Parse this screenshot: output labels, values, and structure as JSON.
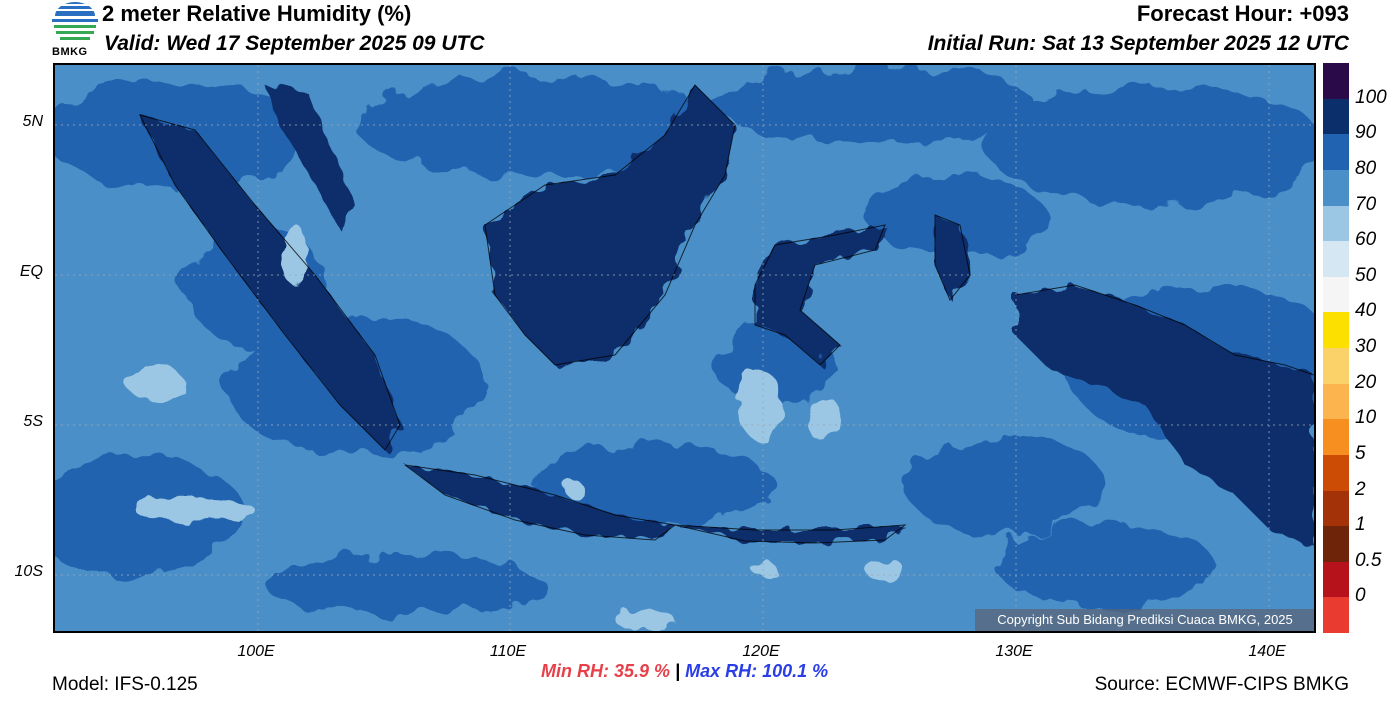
{
  "header": {
    "title": "2 meter Relative Humidity (%)",
    "valid": "Valid: Wed 17 September 2025 09 UTC",
    "forecast_hour": "Forecast Hour: +093",
    "initial_run": "Initial Run: Sat 13 September 2025 12 UTC",
    "logo_text": "BMKG"
  },
  "map": {
    "lat_labels": [
      "5N",
      "EQ",
      "5S",
      "10S"
    ],
    "lon_labels": [
      "100E",
      "110E",
      "120E",
      "130E",
      "140E"
    ],
    "copyright": "Copyright Sub Bidang Prediksi Cuaca BMKG, 2025"
  },
  "colorbar": {
    "labels": [
      "100",
      "90",
      "80",
      "70",
      "60",
      "50",
      "40",
      "30",
      "20",
      "10",
      "5",
      "2",
      "1",
      "0.5",
      "0"
    ],
    "colors": [
      "#2b0a4a",
      "#0b2f6b",
      "#2163b0",
      "#4a8fc8",
      "#9cc7e4",
      "#d5e7f2",
      "#f5f5f5",
      "#fbe000",
      "#fbd26a",
      "#fcb44f",
      "#f78f20",
      "#cc4c06",
      "#a33208",
      "#6e2408",
      "#b5121b",
      "#ea3b31"
    ]
  },
  "footer": {
    "model": "Model: IFS-0.125",
    "min_rh": "Min RH:  35.9 %",
    "separator": "|",
    "max_rh": "Max RH: 100.1 %",
    "source": "Source: ECMWF-CIPS BMKG"
  }
}
